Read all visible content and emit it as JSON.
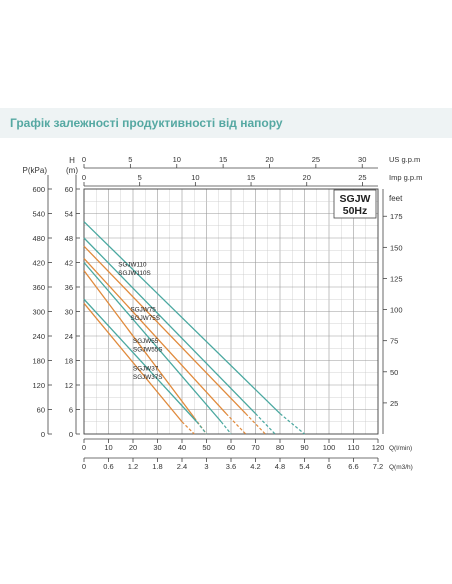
{
  "title": "Графік залежності продуктивності від напору",
  "chart_data": {
    "type": "line",
    "model_box": [
      "SGJW",
      "50Hz"
    ],
    "axes": {
      "x_main": {
        "label": "Q(l/min)",
        "min": 0,
        "max": 120,
        "ticks": [
          0,
          10,
          20,
          30,
          40,
          50,
          60,
          70,
          80,
          90,
          100,
          110,
          120
        ]
      },
      "x_m3h": {
        "label": "Q(m3/h)",
        "min": 0,
        "max": 7.2,
        "ticks": [
          "0",
          "0.6",
          "1.2",
          "1.8",
          "2.4",
          "3",
          "3.6",
          "4.2",
          "4.8",
          "5.4",
          "6",
          "6.6",
          "7.2"
        ]
      },
      "x_us": {
        "label": "US g.p.m",
        "min": 0,
        "max": 31.7,
        "ticks": [
          0,
          5,
          10,
          15,
          20,
          25,
          30
        ]
      },
      "x_imp": {
        "label": "Imp g.p.m",
        "min": 0,
        "max": 26.4,
        "ticks": [
          0,
          5,
          10,
          15,
          20,
          25
        ]
      },
      "y_main": {
        "label": "H (m)",
        "label_top": "H",
        "label_bottom": "(m)",
        "min": 0,
        "max": 60,
        "ticks": [
          0,
          6,
          12,
          18,
          24,
          30,
          36,
          42,
          48,
          54,
          60
        ]
      },
      "y_kpa": {
        "label": "P(kPa)",
        "min": 0,
        "max": 600,
        "ticks": [
          0,
          60,
          120,
          180,
          240,
          300,
          360,
          420,
          480,
          540,
          600
        ]
      },
      "y_feet": {
        "label": "feet",
        "min": 0,
        "max": 196.9,
        "ticks": [
          25,
          50,
          75,
          100,
          125,
          150,
          175
        ]
      }
    },
    "grid": true,
    "series": [
      {
        "name": "SGJW110",
        "color": "#4aa8a0",
        "x": [
          0,
          80
        ],
        "y": [
          52,
          5
        ],
        "dashed_x": [
          80,
          90
        ],
        "dashed_y": [
          5,
          0
        ]
      },
      {
        "name": "SGJW110S",
        "color": "#e08a3c",
        "x": [
          0,
          66
        ],
        "y": [
          46,
          5
        ],
        "dashed_x": [
          66,
          74
        ],
        "dashed_y": [
          5,
          0
        ]
      },
      {
        "name": "SGJW75",
        "color": "#4aa8a0",
        "x": [
          0,
          70
        ],
        "y": [
          48,
          5
        ],
        "dashed_x": [
          70,
          78
        ],
        "dashed_y": [
          5,
          0
        ]
      },
      {
        "name": "SGJW75S",
        "color": "#e08a3c",
        "x": [
          0,
          58
        ],
        "y": [
          43,
          5
        ],
        "dashed_x": [
          58,
          66
        ],
        "dashed_y": [
          5,
          0
        ]
      },
      {
        "name": "SGJW55",
        "color": "#4aa8a0",
        "x": [
          0,
          56
        ],
        "y": [
          42,
          3
        ],
        "dashed_x": [
          56,
          60
        ],
        "dashed_y": [
          3,
          0
        ]
      },
      {
        "name": "SGJW55S",
        "color": "#e08a3c",
        "x": [
          0,
          45
        ],
        "y": [
          40,
          4
        ],
        "dashed_x": [
          45,
          50
        ],
        "dashed_y": [
          4,
          0
        ]
      },
      {
        "name": "SGJW37",
        "color": "#4aa8a0",
        "x": [
          0,
          46
        ],
        "y": [
          33,
          3
        ],
        "dashed_x": [
          46,
          50
        ],
        "dashed_y": [
          3,
          0
        ]
      },
      {
        "name": "SGJW37S",
        "color": "#e08a3c",
        "x": [
          0,
          40
        ],
        "y": [
          32,
          3
        ],
        "dashed_x": [
          40,
          45
        ],
        "dashed_y": [
          3,
          0
        ]
      }
    ],
    "series_label_groups": [
      {
        "names": [
          "SGJW110",
          "SGJW110S"
        ],
        "x": 14,
        "y": 41
      },
      {
        "names": [
          "SGJW75",
          "SGJW75S"
        ],
        "x": 19,
        "y": 30
      },
      {
        "names": [
          "SGJW55",
          "SGJW55S"
        ],
        "x": 20,
        "y": 22.3
      },
      {
        "names": [
          "SGJW37",
          "SGJW37S"
        ],
        "x": 20,
        "y": 15.5
      }
    ]
  }
}
